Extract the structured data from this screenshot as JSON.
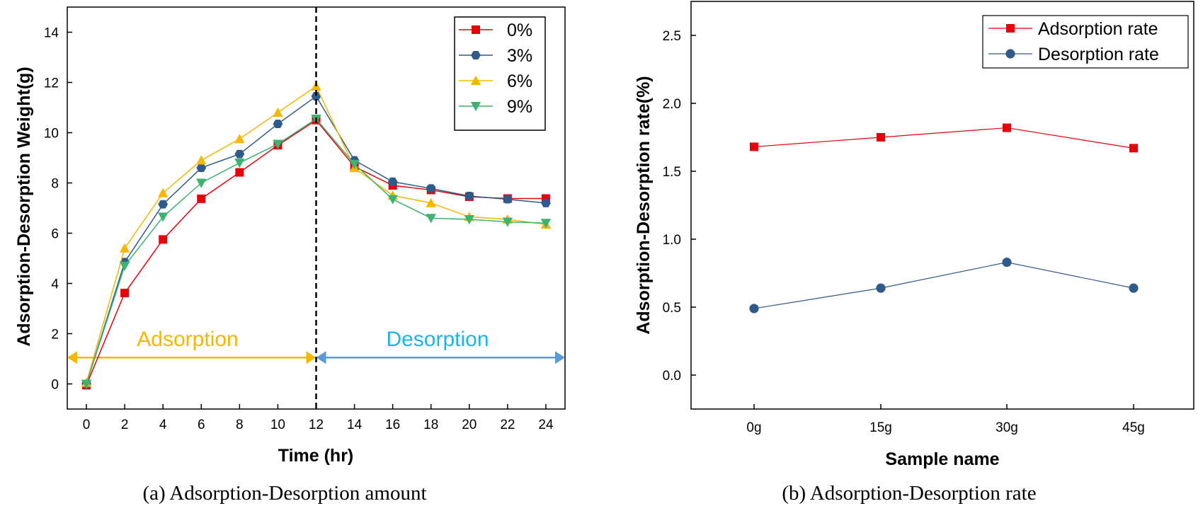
{
  "chart_data": [
    {
      "type": "line",
      "caption": "(a) Adsorption-Desorption amount",
      "xlabel": "Time (hr)",
      "ylabel": "Adsorption-Desorption Weight(g)",
      "x": [
        0,
        2,
        4,
        6,
        8,
        10,
        12,
        14,
        16,
        18,
        20,
        22,
        24
      ],
      "xlim": [
        -1,
        25
      ],
      "ylim": [
        -1,
        15
      ],
      "yticks": [
        0,
        2,
        4,
        6,
        8,
        10,
        12,
        14
      ],
      "divider_x": 12,
      "regions": [
        {
          "label": "Adsorption",
          "from": -1,
          "to": 12,
          "y": 1.05,
          "color": "#f5b800"
        },
        {
          "label": "Desorption",
          "from": 12,
          "to": 25,
          "y": 1.05,
          "color": "#5b9bd5",
          "text_color": "#1fb4e8"
        }
      ],
      "legend_position": "top-right",
      "series": [
        {
          "name": "0%",
          "color": "#e8000b",
          "marker": "square",
          "values": [
            -0.05,
            3.62,
            5.75,
            7.37,
            8.42,
            9.5,
            10.5,
            8.65,
            7.9,
            7.72,
            7.45,
            7.38,
            7.38
          ]
        },
        {
          "name": "3%",
          "color": "#2e5a8c",
          "marker": "hexagon",
          "values": [
            0.0,
            4.85,
            7.15,
            8.6,
            9.15,
            10.35,
            11.45,
            8.9,
            8.05,
            7.78,
            7.48,
            7.35,
            7.2
          ]
        },
        {
          "name": "6%",
          "color": "#f5b800",
          "marker": "triangle-up",
          "values": [
            0.05,
            5.4,
            7.6,
            8.9,
            9.75,
            10.8,
            11.85,
            8.6,
            7.5,
            7.2,
            6.65,
            6.55,
            6.35
          ]
        },
        {
          "name": "9%",
          "color": "#3cb371",
          "marker": "triangle-down",
          "values": [
            0.0,
            4.7,
            6.65,
            8.0,
            8.8,
            9.55,
            10.55,
            8.75,
            7.35,
            6.6,
            6.55,
            6.45,
            6.4
          ]
        }
      ]
    },
    {
      "type": "line",
      "caption": "(b) Adsorption-Desorption rate",
      "xlabel": "Sample name",
      "ylabel": "Adsorption-Desorption rate(%)",
      "categories": [
        "0g",
        "15g",
        "30g",
        "45g"
      ],
      "ylim": [
        -0.25,
        2.75
      ],
      "yticks": [
        "0.0",
        "0.5",
        "1.0",
        "1.5",
        "2.0",
        "2.5"
      ],
      "legend_position": "top-right",
      "series": [
        {
          "name": "Adsorption rate",
          "color": "#e8000b",
          "marker": "square",
          "values": [
            1.68,
            1.75,
            1.82,
            1.67
          ]
        },
        {
          "name": "Desorption rate",
          "color": "#2e5a8c",
          "marker": "circle",
          "values": [
            0.49,
            0.64,
            0.83,
            0.64
          ]
        }
      ]
    }
  ]
}
